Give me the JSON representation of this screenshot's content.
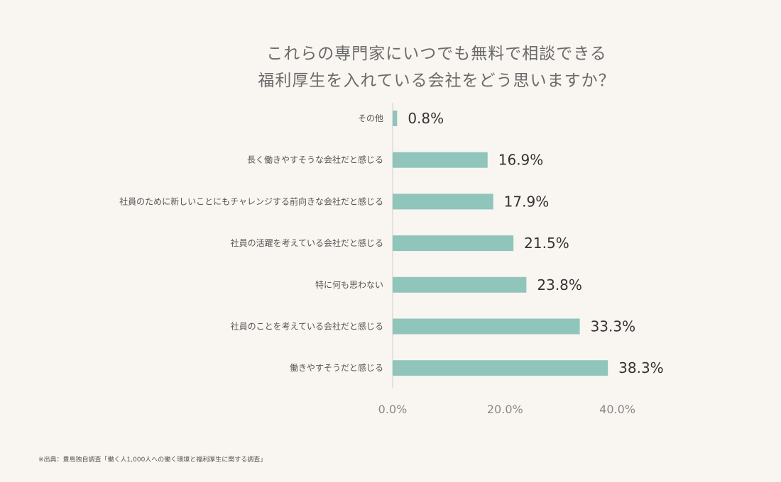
{
  "chart_data": {
    "type": "bar",
    "orientation": "horizontal",
    "title": [
      "これらの専門家にいつでも無料で相談できる",
      "福利厚生を入れている会社をどう思いますか？"
    ],
    "categories": [
      "その他",
      "長く働きやすそうな会社だと感じる",
      "社員のために新しいことにもチャレンジする前向きな会社だと感じる",
      "社員の活躍を考えている会社だと感じる",
      "特に何も思わない",
      "社員のことを考えている会社だと感じる",
      "働きやすそうだと感じる"
    ],
    "values": [
      0.8,
      16.9,
      17.9,
      21.5,
      23.8,
      33.3,
      38.3
    ],
    "value_labels": [
      "0.8%",
      "16.9%",
      "17.9%",
      "21.5%",
      "23.8%",
      "33.3%",
      "38.3%"
    ],
    "xlim": [
      0,
      45
    ],
    "x_ticks": [
      0,
      20,
      40
    ],
    "x_tick_labels": [
      "0.0%",
      "20.0%",
      "40.0%"
    ],
    "bar_color": "#8fc5bb",
    "grid": false
  },
  "source_note": "※出典：豊島独自調査「働く人1,000人への働く環境と福利厚生に関する調査」"
}
